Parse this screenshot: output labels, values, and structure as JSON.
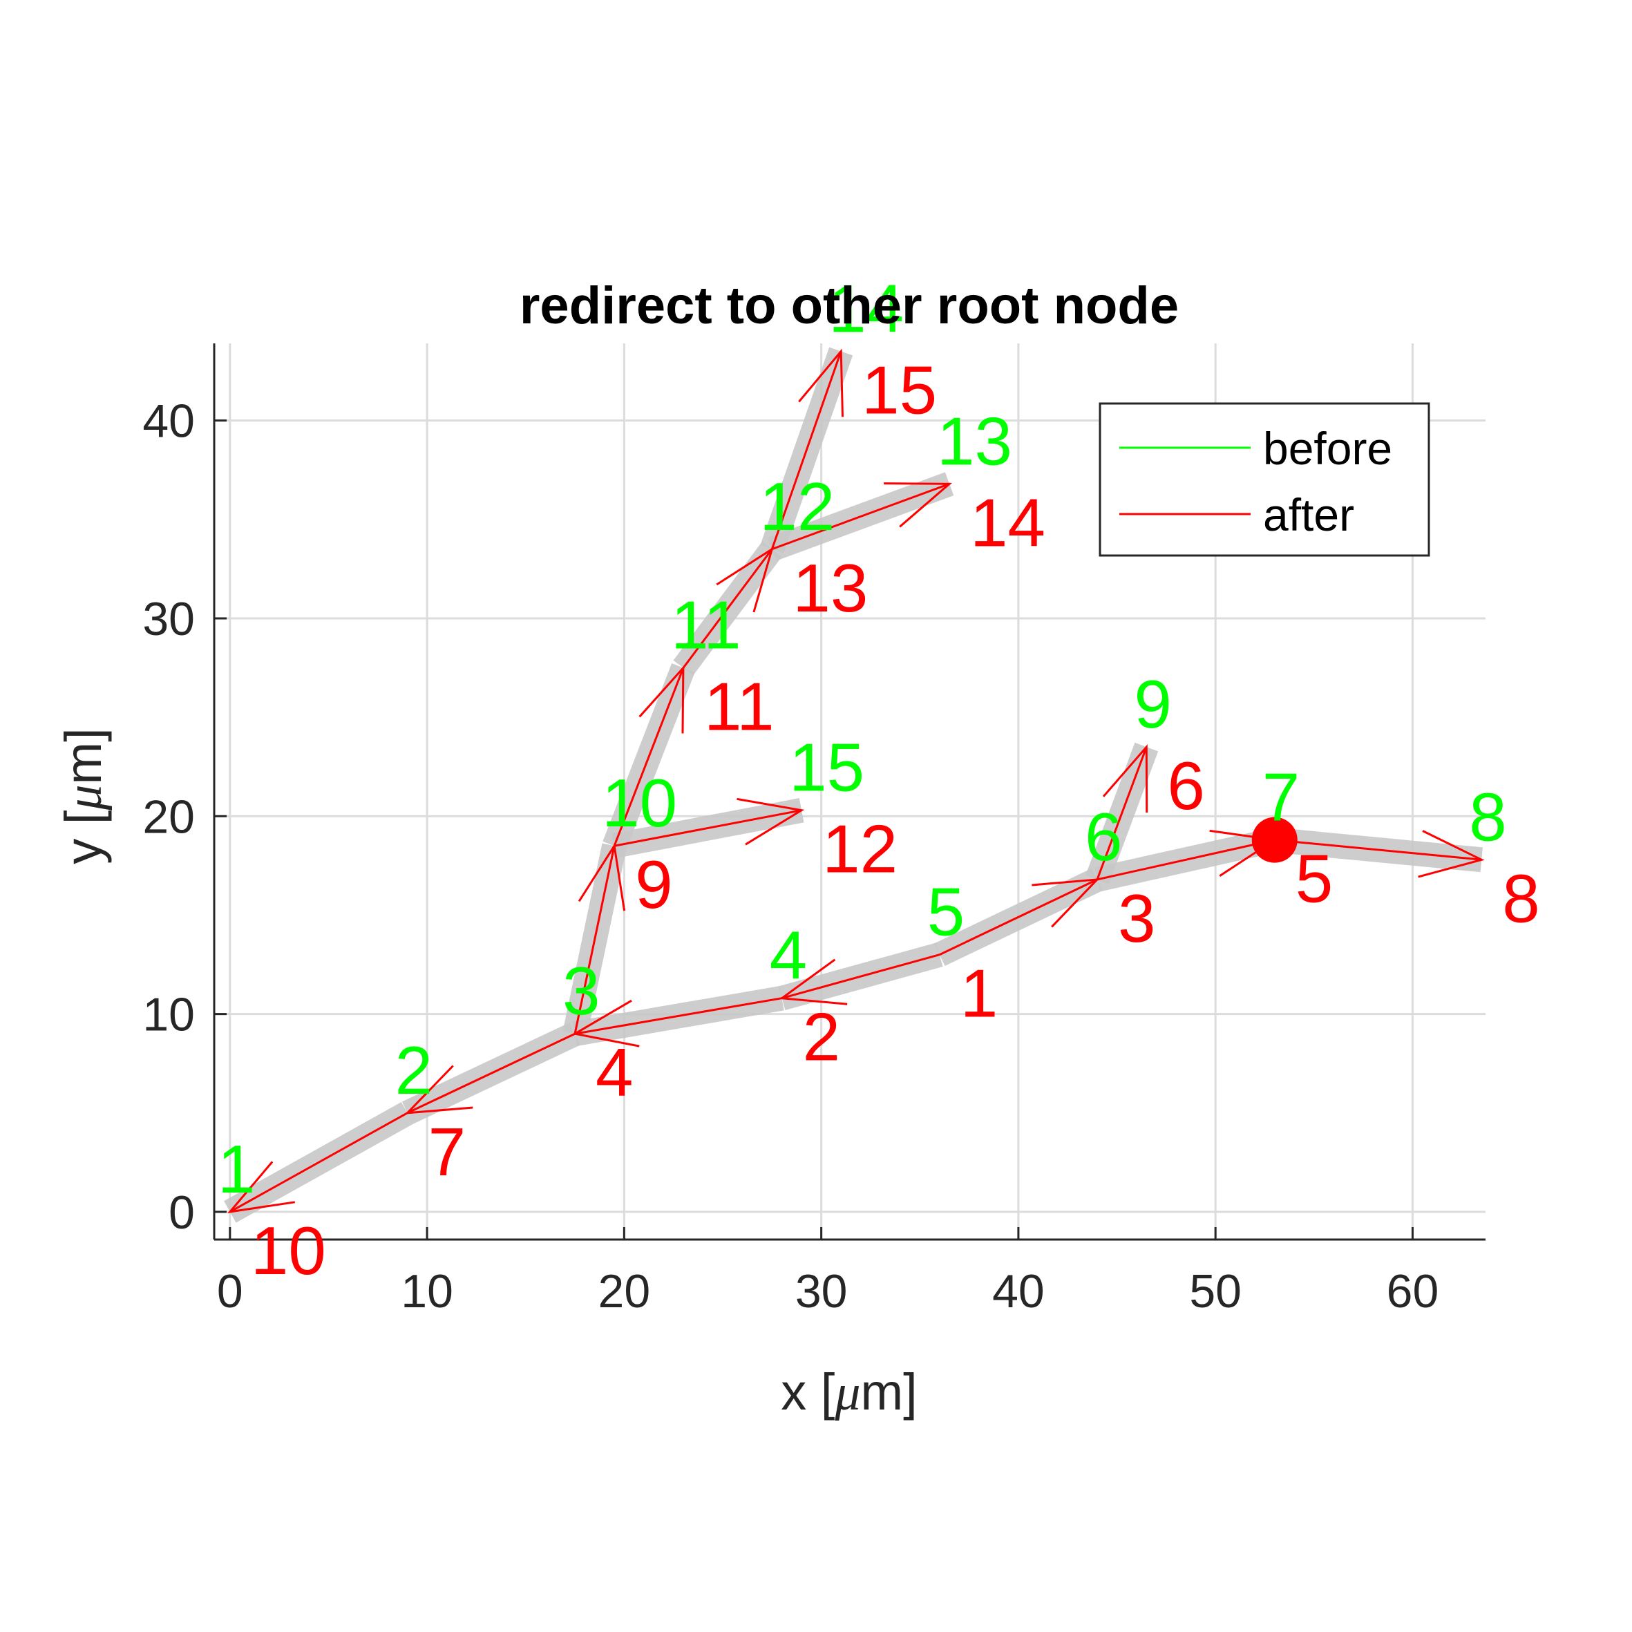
{
  "chart_data": {
    "type": "line",
    "title": "redirect to other root node",
    "xlabel": "x [μm]",
    "ylabel": "y [μm]",
    "xlim": [
      -0.8,
      63.7
    ],
    "ylim": [
      -1.4,
      43.9
    ],
    "xticks": [
      "0",
      "10",
      "20",
      "30",
      "40",
      "50",
      "60"
    ],
    "yticks": [
      "0",
      "10",
      "20",
      "30",
      "40"
    ],
    "xtick_values": [
      0,
      10,
      20,
      30,
      40,
      50,
      60
    ],
    "ytick_values": [
      0,
      10,
      20,
      30,
      40
    ],
    "grid": true,
    "legend_position": "top-right",
    "colors": {
      "before": "#00ff00",
      "after": "#ff0000",
      "tube": "#c8c8c8",
      "grid": "#dcdcdc",
      "axis": "#262626"
    },
    "series": [
      {
        "name": "before",
        "color": "#00ff00"
      },
      {
        "name": "after",
        "color": "#ff0000"
      }
    ],
    "nodes": [
      {
        "x": 0.0,
        "y": 0.0,
        "before": "1",
        "after": "10"
      },
      {
        "x": 9.0,
        "y": 5.0,
        "before": "2",
        "after": "7"
      },
      {
        "x": 17.5,
        "y": 9.0,
        "before": "3",
        "after": "4"
      },
      {
        "x": 28.0,
        "y": 10.8,
        "before": "4",
        "after": "2"
      },
      {
        "x": 36.0,
        "y": 13.0,
        "before": "5",
        "after": "1"
      },
      {
        "x": 44.0,
        "y": 16.8,
        "before": "6",
        "after": "3"
      },
      {
        "x": 53.0,
        "y": 18.8,
        "before": "7",
        "after": "5"
      },
      {
        "x": 63.5,
        "y": 17.8,
        "before": "8",
        "after": "8"
      },
      {
        "x": 46.5,
        "y": 23.5,
        "before": "9",
        "after": "6"
      },
      {
        "x": 19.5,
        "y": 18.5,
        "before": "10",
        "after": "9"
      },
      {
        "x": 23.0,
        "y": 27.5,
        "before": "11",
        "after": "11"
      },
      {
        "x": 27.5,
        "y": 33.5,
        "before": "12",
        "after": "13"
      },
      {
        "x": 36.5,
        "y": 36.8,
        "before": "13",
        "after": "14"
      },
      {
        "x": 31.0,
        "y": 43.5,
        "before": "14",
        "after": "15"
      },
      {
        "x": 29.0,
        "y": 20.3,
        "before": "15",
        "after": "12"
      }
    ],
    "root_before": "1",
    "root_after": "5",
    "edges_before": [
      [
        "1",
        "2"
      ],
      [
        "2",
        "3"
      ],
      [
        "3",
        "4"
      ],
      [
        "4",
        "5"
      ],
      [
        "5",
        "6"
      ],
      [
        "6",
        "7"
      ],
      [
        "7",
        "8"
      ],
      [
        "6",
        "9"
      ],
      [
        "3",
        "10"
      ],
      [
        "10",
        "11"
      ],
      [
        "11",
        "12"
      ],
      [
        "12",
        "13"
      ],
      [
        "12",
        "14"
      ],
      [
        "10",
        "15"
      ]
    ],
    "edges_after": [
      [
        "1",
        "2"
      ],
      [
        "2",
        "4"
      ],
      [
        "4",
        "7"
      ],
      [
        "7",
        "10"
      ],
      [
        "1",
        "3"
      ],
      [
        "3",
        "5"
      ],
      [
        "5",
        "8"
      ],
      [
        "3",
        "6"
      ],
      [
        "4",
        "9"
      ],
      [
        "9",
        "11"
      ],
      [
        "11",
        "13"
      ],
      [
        "13",
        "14"
      ],
      [
        "13",
        "15"
      ],
      [
        "9",
        "12"
      ]
    ]
  }
}
